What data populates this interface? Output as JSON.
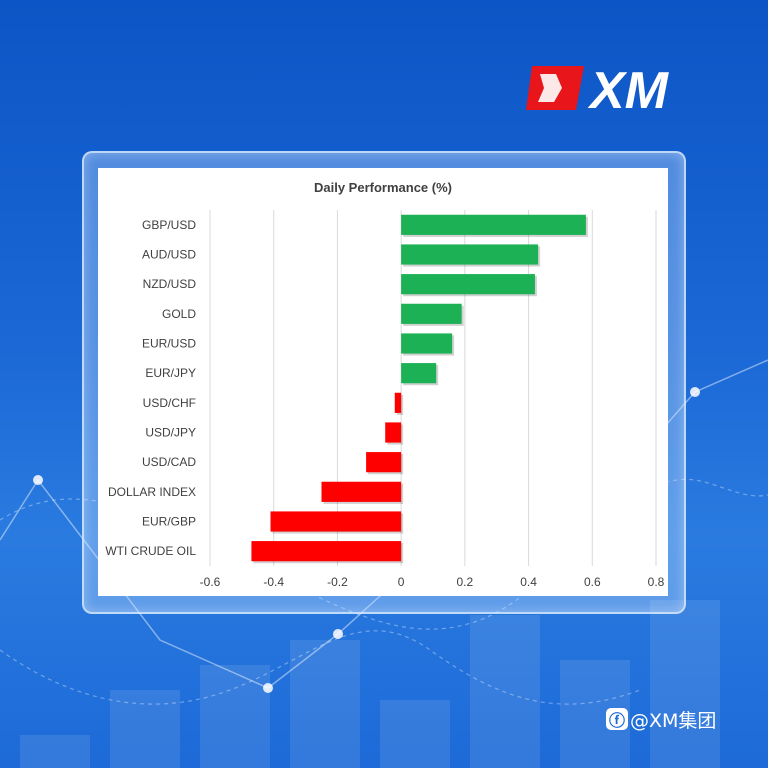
{
  "brand": {
    "logo_text": "XM",
    "watermark": "@XM集团",
    "watermark_icon": "wechat-icon"
  },
  "colors": {
    "positive": "#1db155",
    "negative": "#ff0000",
    "grid": "#d9d9d9",
    "text": "#404040"
  },
  "chart_data": {
    "type": "bar",
    "orientation": "horizontal",
    "title": "Daily Performance (%)",
    "xlabel": "",
    "ylabel": "",
    "xlim": [
      -0.6,
      0.8
    ],
    "x_ticks": [
      -0.6,
      -0.4,
      -0.2,
      0,
      0.2,
      0.4,
      0.6,
      0.8
    ],
    "x_tick_labels": [
      "-0.6",
      "-0.4",
      "-0.2",
      "0",
      "0.2",
      "0.4",
      "0.6",
      "0.8"
    ],
    "grid": "vertical",
    "categories": [
      "GBP/USD",
      "AUD/USD",
      "NZD/USD",
      "GOLD",
      "EUR/USD",
      "EUR/JPY",
      "USD/CHF",
      "USD/JPY",
      "USD/CAD",
      "DOLLAR INDEX",
      "EUR/GBP",
      "WTI CRUDE OIL"
    ],
    "values": [
      0.58,
      0.43,
      0.42,
      0.19,
      0.16,
      0.11,
      -0.02,
      -0.05,
      -0.11,
      -0.25,
      -0.41,
      -0.47
    ]
  }
}
